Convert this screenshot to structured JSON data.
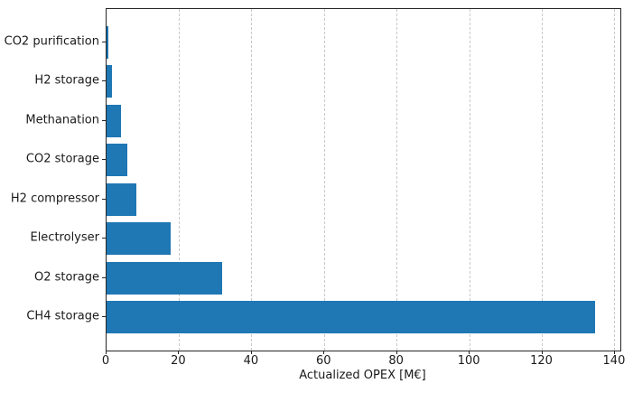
{
  "chart_data": {
    "type": "bar",
    "orientation": "horizontal",
    "title": "",
    "xlabel": "Actualized OPEX [M€]",
    "ylabel": "",
    "categories": [
      "CO2 purification",
      "H2 storage",
      "Methanation",
      "CO2 storage",
      "H2 compressor",
      "Electrolyser",
      "O2 storage",
      "CH4 storage"
    ],
    "values": [
      0.6,
      1.5,
      4.0,
      5.8,
      8.1,
      17.6,
      31.8,
      134.5
    ],
    "xlim": [
      0,
      141.5
    ],
    "xticks": [
      0,
      20,
      40,
      60,
      80,
      100,
      120,
      140
    ],
    "bar_color": "#1f77b4",
    "grid": "vertical dashed at x ticks",
    "gridline_color": "#c9c9c9",
    "legend": "none"
  }
}
